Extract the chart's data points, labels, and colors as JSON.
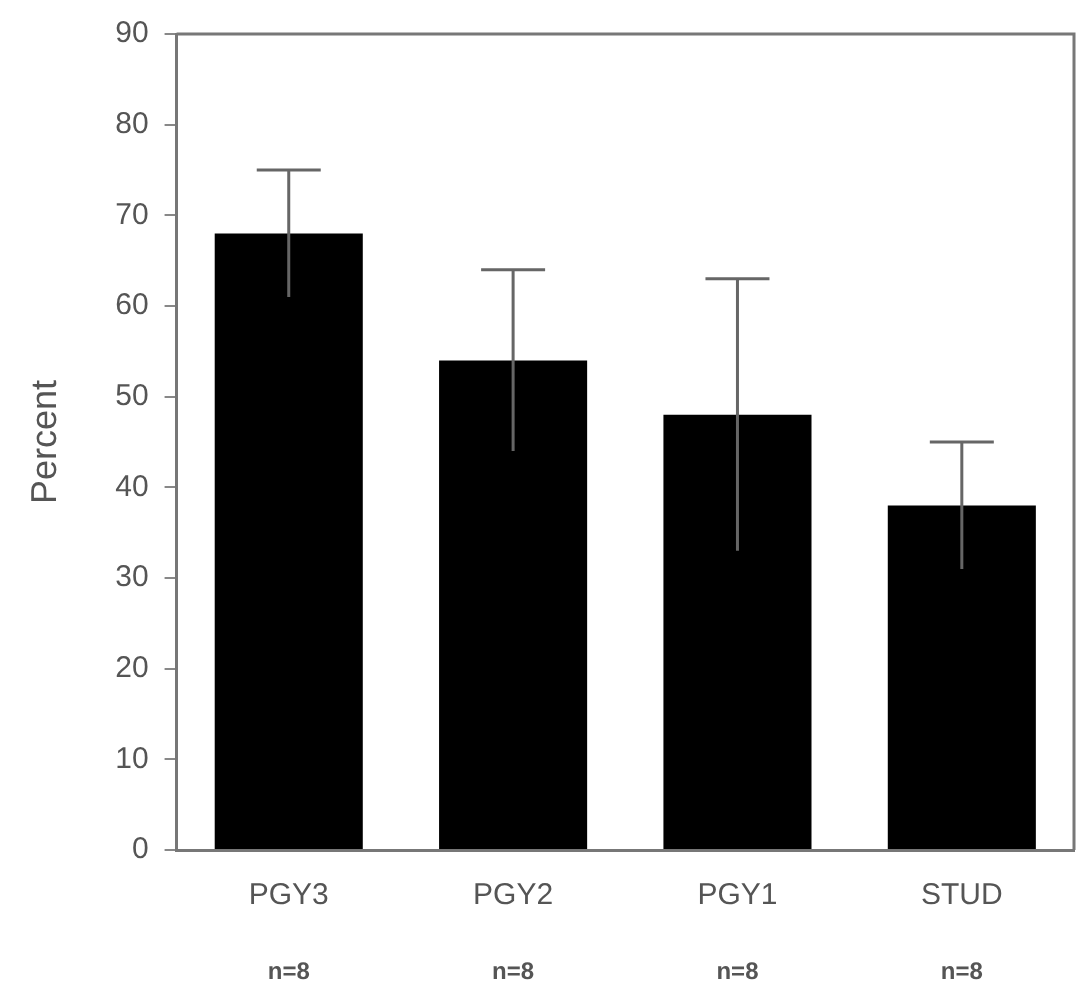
{
  "chart_data": {
    "type": "bar",
    "ylabel": "Percent",
    "categories": [
      "PGY3",
      "PGY2",
      "PGY1",
      "STUD"
    ],
    "values": [
      68,
      54,
      48,
      38
    ],
    "errors": [
      7,
      10,
      15,
      7
    ],
    "color": "#000000",
    "ylim": [
      0,
      90
    ],
    "yticks": [
      0,
      10,
      20,
      30,
      40,
      50,
      60,
      70,
      80,
      90
    ],
    "grid": false,
    "legend": false,
    "annotations": [
      "n=8",
      "n=8",
      "n=8",
      "n=8"
    ]
  }
}
